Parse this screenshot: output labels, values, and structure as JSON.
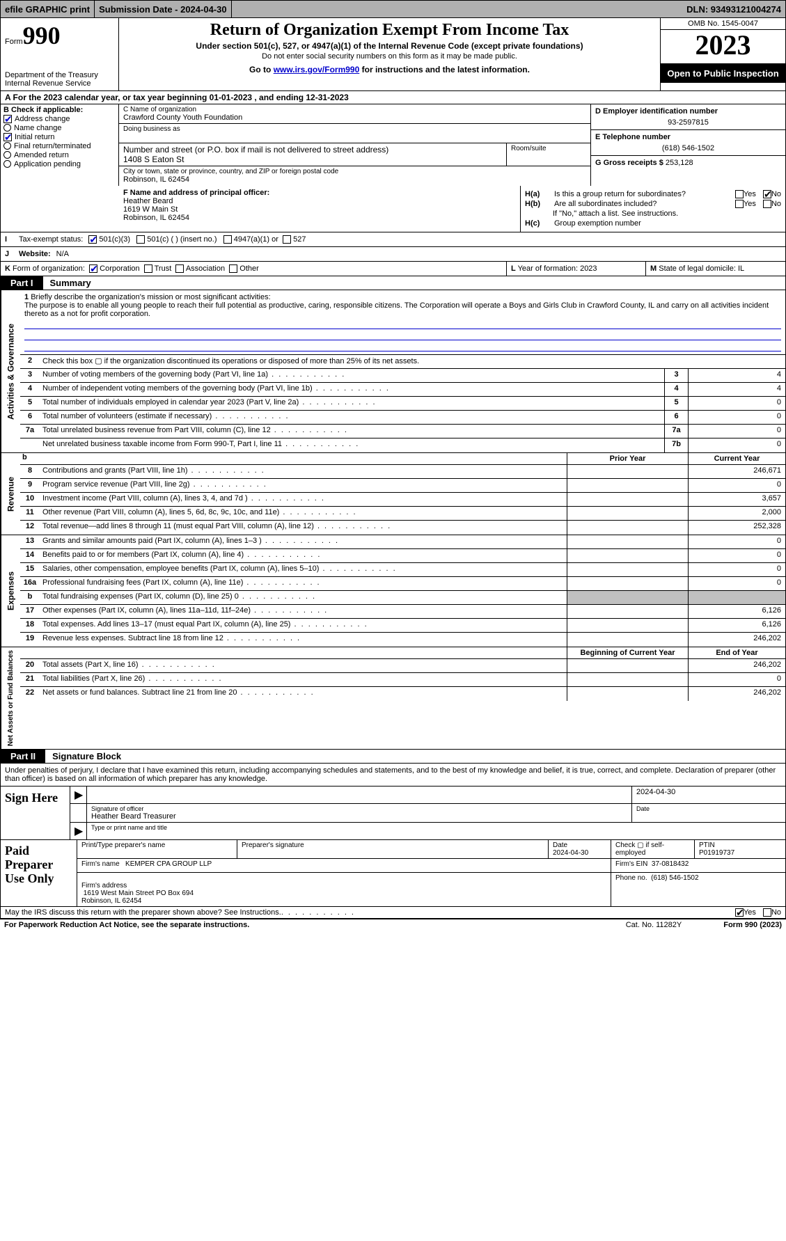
{
  "topbar": {
    "efile": "efile GRAPHIC print",
    "submission_label": "Submission Date - 2024-04-30",
    "dln": "DLN: 93493121004274"
  },
  "header": {
    "form_prefix": "Form",
    "form_number": "990",
    "dept": "Department of the Treasury\nInternal Revenue Service",
    "title": "Return of Organization Exempt From Income Tax",
    "subtitle": "Under section 501(c), 527, or 4947(a)(1) of the Internal Revenue Code (except private foundations)",
    "ssn_note": "Do not enter social security numbers on this form as it may be made public.",
    "goto_prefix": "Go to ",
    "goto_link": "www.irs.gov/Form990",
    "goto_suffix": " for instructions and the latest information.",
    "omb": "OMB No. 1545-0047",
    "year": "2023",
    "open": "Open to Public Inspection"
  },
  "period": "A For the 2023 calendar year, or tax year beginning 01-01-2023   , and ending 12-31-2023",
  "boxB": {
    "header": "B Check if applicable:",
    "items": [
      {
        "label": "Address change",
        "checked": true
      },
      {
        "label": "Name change",
        "checked": false
      },
      {
        "label": "Initial return",
        "checked": true
      },
      {
        "label": "Final return/terminated",
        "checked": false
      },
      {
        "label": "Amended return",
        "checked": false
      },
      {
        "label": "Application pending",
        "checked": false
      }
    ]
  },
  "boxC": {
    "name_label": "C Name of organization",
    "name": "Crawford County Youth Foundation",
    "dba_label": "Doing business as",
    "dba": "",
    "street_label": "Number and street (or P.O. box if mail is not delivered to street address)",
    "street": "1408 S Eaton St",
    "room_label": "Room/suite",
    "city_label": "City or town, state or province, country, and ZIP or foreign postal code",
    "city": "Robinson, IL  62454"
  },
  "boxD": {
    "label": "D Employer identification number",
    "value": "93-2597815"
  },
  "boxE": {
    "label": "E Telephone number",
    "value": "(618) 546-1502"
  },
  "boxG": {
    "label": "G Gross receipts $",
    "value": "253,128"
  },
  "boxF": {
    "label": "F  Name and address of principal officer:",
    "name": "Heather Beard",
    "street": "1619 W Main St",
    "city": "Robinson, IL  62454"
  },
  "boxH": {
    "a_label": "H(a)",
    "a_text": "Is this a group return for subordinates?",
    "a_yes": false,
    "a_no": true,
    "b_label": "H(b)",
    "b_text": "Are all subordinates included?",
    "b_yes": false,
    "b_no": false,
    "b_note": "If \"No,\" attach a list. See instructions.",
    "c_label": "H(c)",
    "c_text": "Group exemption number",
    "c_value": ""
  },
  "boxI": {
    "label": "I",
    "text": "Tax-exempt status:",
    "opt1": "501(c)(3)",
    "opt1_checked": true,
    "opt2": "501(c) (  ) (insert no.)",
    "opt3": "4947(a)(1) or",
    "opt4": "527"
  },
  "boxJ": {
    "label": "J",
    "text": "Website:",
    "value": "N/A"
  },
  "boxK": {
    "label": "K",
    "text": "Form of organization:",
    "corp": "Corporation",
    "corp_checked": true,
    "trust": "Trust",
    "assoc": "Association",
    "other": "Other"
  },
  "boxL": {
    "label": "L",
    "text": "Year of formation: 2023"
  },
  "boxM": {
    "label": "M",
    "text": "State of legal domicile: IL"
  },
  "partI": {
    "part_label": "Part I",
    "title": "Summary",
    "line1_label": "1",
    "line1_text": "Briefly describe the organization's mission or most significant activities:",
    "mission": "The purpose is to enable all young people to reach their full potential as productive, caring, responsible citizens. The Corporation will operate a Boys and Girls Club in Crawford County, IL and carry on all activities incident thereto as a not for profit corporation.",
    "line2": "Check this box  ▢  if the organization discontinued its operations or disposed of more than 25% of its net assets.",
    "activities_label": "Activities & Governance",
    "rows_small": [
      {
        "num": "3",
        "desc": "Number of voting members of the governing body (Part VI, line 1a)",
        "box": "3",
        "val": "4"
      },
      {
        "num": "4",
        "desc": "Number of independent voting members of the governing body (Part VI, line 1b)",
        "box": "4",
        "val": "4"
      },
      {
        "num": "5",
        "desc": "Total number of individuals employed in calendar year 2023 (Part V, line 2a)",
        "box": "5",
        "val": "0"
      },
      {
        "num": "6",
        "desc": "Total number of volunteers (estimate if necessary)",
        "box": "6",
        "val": "0"
      },
      {
        "num": "7a",
        "desc": "Total unrelated business revenue from Part VIII, column (C), line 12",
        "box": "7a",
        "val": "0"
      },
      {
        "num": "",
        "desc": "Net unrelated business taxable income from Form 990-T, Part I, line 11",
        "box": "7b",
        "val": "0"
      }
    ],
    "prior_hdr": "Prior Year",
    "curr_hdr": "Current Year",
    "revenue_label": "Revenue",
    "revenue": [
      {
        "num": "8",
        "desc": "Contributions and grants (Part VIII, line 1h)",
        "prior": "",
        "curr": "246,671"
      },
      {
        "num": "9",
        "desc": "Program service revenue (Part VIII, line 2g)",
        "prior": "",
        "curr": "0"
      },
      {
        "num": "10",
        "desc": "Investment income (Part VIII, column (A), lines 3, 4, and 7d )",
        "prior": "",
        "curr": "3,657"
      },
      {
        "num": "11",
        "desc": "Other revenue (Part VIII, column (A), lines 5, 6d, 8c, 9c, 10c, and 11e)",
        "prior": "",
        "curr": "2,000"
      },
      {
        "num": "12",
        "desc": "Total revenue—add lines 8 through 11 (must equal Part VIII, column (A), line 12)",
        "prior": "",
        "curr": "252,328"
      }
    ],
    "expenses_label": "Expenses",
    "expenses": [
      {
        "num": "13",
        "desc": "Grants and similar amounts paid (Part IX, column (A), lines 1–3 )",
        "prior": "",
        "curr": "0"
      },
      {
        "num": "14",
        "desc": "Benefits paid to or for members (Part IX, column (A), line 4)",
        "prior": "",
        "curr": "0"
      },
      {
        "num": "15",
        "desc": "Salaries, other compensation, employee benefits (Part IX, column (A), lines 5–10)",
        "prior": "",
        "curr": "0"
      },
      {
        "num": "16a",
        "desc": "Professional fundraising fees (Part IX, column (A), line 11e)",
        "prior": "",
        "curr": "0"
      },
      {
        "num": "b",
        "desc": "Total fundraising expenses (Part IX, column (D), line 25) 0",
        "prior": "shade",
        "curr": "shade"
      },
      {
        "num": "17",
        "desc": "Other expenses (Part IX, column (A), lines 11a–11d, 11f–24e)",
        "prior": "",
        "curr": "6,126"
      },
      {
        "num": "18",
        "desc": "Total expenses. Add lines 13–17 (must equal Part IX, column (A), line 25)",
        "prior": "",
        "curr": "6,126"
      },
      {
        "num": "19",
        "desc": "Revenue less expenses. Subtract line 18 from line 12",
        "prior": "",
        "curr": "246,202"
      }
    ],
    "netassets_label": "Net Assets or Fund Balances",
    "na_prior_hdr": "Beginning of Current Year",
    "na_curr_hdr": "End of Year",
    "netassets": [
      {
        "num": "20",
        "desc": "Total assets (Part X, line 16)",
        "prior": "",
        "curr": "246,202"
      },
      {
        "num": "21",
        "desc": "Total liabilities (Part X, line 26)",
        "prior": "",
        "curr": "0"
      },
      {
        "num": "22",
        "desc": "Net assets or fund balances. Subtract line 21 from line 20",
        "prior": "",
        "curr": "246,202"
      }
    ]
  },
  "partII": {
    "part_label": "Part II",
    "title": "Signature Block",
    "perjury": "Under penalties of perjury, I declare that I have examined this return, including accompanying schedules and statements, and to the best of my knowledge and belief, it is true, correct, and complete. Declaration of preparer (other than officer) is based on all information of which preparer has any knowledge.",
    "sign_here": "Sign Here",
    "sig_officer_label": "Signature of officer",
    "officer_name": "Heather Beard  Treasurer",
    "type_label": "Type or print name and title",
    "date_top": "2024-04-30",
    "date_label": "Date",
    "paid_label": "Paid Preparer Use Only",
    "print_name_label": "Print/Type preparer's name",
    "print_name": "",
    "prep_sig_label": "Preparer's signature",
    "prep_date": "2024-04-30",
    "check_if": "Check ▢ if self-employed",
    "ptin_label": "PTIN",
    "ptin": "P01919737",
    "firm_name_label": "Firm's name",
    "firm_name": "KEMPER CPA GROUP LLP",
    "firm_ein_label": "Firm's EIN",
    "firm_ein": "37-0818432",
    "firm_addr_label": "Firm's address",
    "firm_addr": "1619 West Main Street PO Box 694\nRobinson, IL  62454",
    "phone_label": "Phone no.",
    "phone": "(618) 546-1502",
    "discuss": "May the IRS discuss this return with the preparer shown above? See Instructions.",
    "discuss_yes": true,
    "discuss_no": false
  },
  "footer": {
    "paperwork": "For Paperwork Reduction Act Notice, see the separate instructions.",
    "cat": "Cat. No. 11282Y",
    "form": "Form 990 (2023)"
  }
}
